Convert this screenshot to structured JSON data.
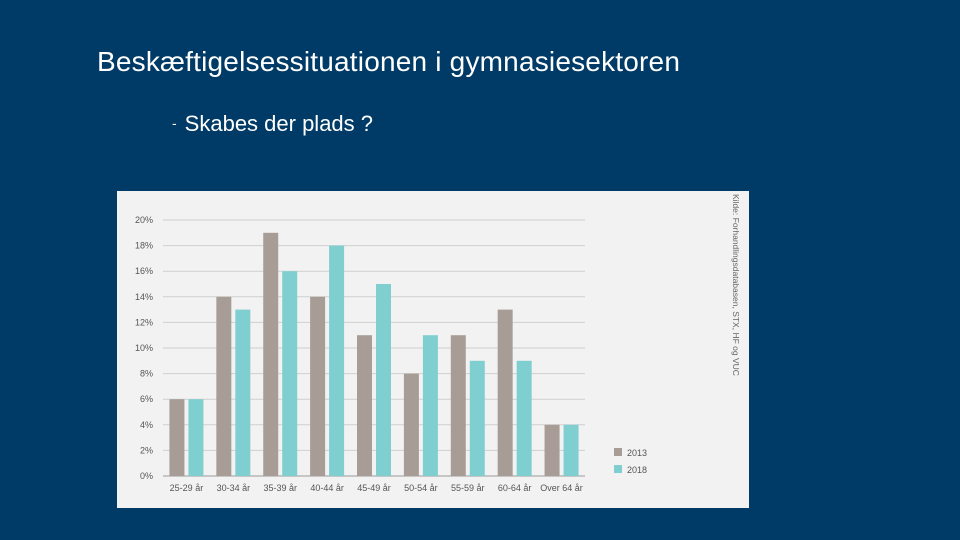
{
  "slide": {
    "title": "Beskæftigelsessituationen i gymnasiesektoren",
    "bullet": "Skabes der plads ?"
  },
  "colors": {
    "background": "#003a66",
    "panel": "#f2f2f2",
    "series_2013": "#a79d96",
    "series_2018": "#80cfd0"
  },
  "chart_data": {
    "type": "bar",
    "categories": [
      "25-29 år",
      "30-34 år",
      "35-39 år",
      "40-44 år",
      "45-49 år",
      "50-54 år",
      "55-59 år",
      "60-64 år",
      "Over 64 år"
    ],
    "series": [
      {
        "name": "2013",
        "values": [
          6,
          14,
          19,
          14,
          11,
          8,
          11,
          13,
          4
        ]
      },
      {
        "name": "2018",
        "values": [
          6,
          13,
          16,
          18,
          15,
          11,
          9,
          9,
          4
        ]
      }
    ],
    "y_ticks": [
      "0%",
      "2%",
      "4%",
      "6%",
      "8%",
      "10%",
      "12%",
      "14%",
      "16%",
      "18%",
      "20%"
    ],
    "ylim": [
      0,
      20
    ],
    "grid": true,
    "legend_position": "bottom-right",
    "source": "Kilde: Forhandlingsdatabasen, STX, HF og VUC"
  }
}
